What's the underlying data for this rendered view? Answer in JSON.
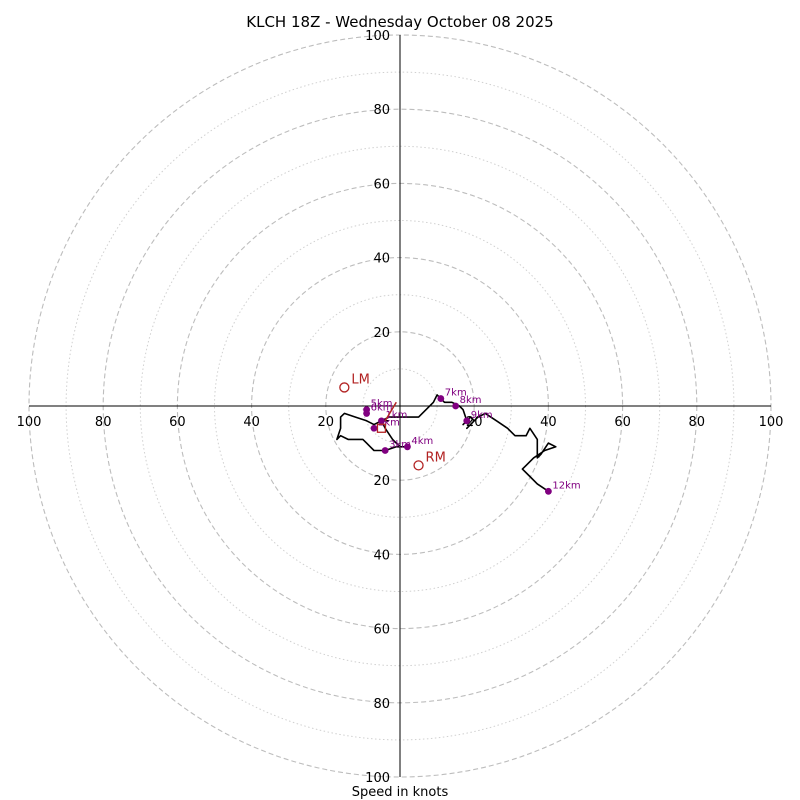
{
  "chart_data": {
    "type": "hodograph",
    "title": "KLCH 18Z - Wednesday October 08 2025",
    "xlabel": "Speed in knots",
    "axis_range": [
      -100,
      100
    ],
    "ring_major_values": [
      20,
      40,
      60,
      80,
      100
    ],
    "ring_minor_values": [
      10,
      30,
      50,
      70,
      90
    ],
    "tick_labels": {
      "x_left": [
        "100",
        "80",
        "60",
        "40",
        "20"
      ],
      "x_right": [
        "20",
        "40",
        "60",
        "80",
        "100"
      ],
      "y_top": [
        "100",
        "80",
        "60",
        "40",
        "20"
      ],
      "y_bottom": [
        "20",
        "40",
        "60",
        "80",
        "100"
      ]
    },
    "hodograph_trace": [
      [
        -3,
        -4
      ],
      [
        -5,
        -4
      ],
      [
        -4,
        -6
      ],
      [
        -2,
        -9
      ],
      [
        0,
        -11
      ],
      [
        2,
        -11
      ],
      [
        -1,
        -11
      ],
      [
        -4,
        -12
      ],
      [
        -7,
        -12
      ],
      [
        -8,
        -11
      ],
      [
        -9,
        -10
      ],
      [
        -10,
        -9
      ],
      [
        -12,
        -9
      ],
      [
        -14,
        -9
      ],
      [
        -16,
        -8
      ],
      [
        -17,
        -9
      ],
      [
        -16,
        -6
      ],
      [
        -16,
        -3
      ],
      [
        -15,
        -2
      ],
      [
        -12,
        -3
      ],
      [
        -9,
        -4
      ],
      [
        -7,
        -5
      ],
      [
        -5,
        -4
      ],
      [
        -3,
        -3
      ],
      [
        -1,
        -3
      ],
      [
        2,
        -3
      ],
      [
        5,
        -3
      ],
      [
        7,
        -1
      ],
      [
        9,
        1
      ],
      [
        10,
        3
      ],
      [
        12,
        1
      ],
      [
        14,
        1
      ],
      [
        16,
        0
      ],
      [
        17,
        -1
      ],
      [
        18,
        -4
      ],
      [
        17,
        -5
      ],
      [
        19,
        -3
      ],
      [
        20,
        -4
      ],
      [
        18,
        -6
      ],
      [
        21,
        -3
      ],
      [
        23,
        -2
      ],
      [
        26,
        -4
      ],
      [
        29,
        -6
      ],
      [
        31,
        -8
      ],
      [
        34,
        -8
      ],
      [
        35,
        -6
      ],
      [
        37,
        -9
      ],
      [
        37,
        -12
      ],
      [
        37,
        -14
      ],
      [
        38,
        -13
      ],
      [
        40,
        -10
      ],
      [
        42,
        -11
      ],
      [
        39,
        -12
      ],
      [
        36,
        -14
      ],
      [
        34,
        -16
      ],
      [
        33,
        -17
      ],
      [
        35,
        -19
      ],
      [
        37,
        -21
      ],
      [
        40,
        -23
      ]
    ],
    "height_markers": [
      {
        "label": "1km",
        "u": -5,
        "v": -4
      },
      {
        "label": "2km",
        "u": -7,
        "v": -6
      },
      {
        "label": "3km",
        "u": -4,
        "v": -12
      },
      {
        "label": "4km",
        "u": 2,
        "v": -11
      },
      {
        "label": "5km",
        "u": -9,
        "v": -1
      },
      {
        "label": "6km",
        "u": -9,
        "v": -2
      },
      {
        "label": "7km",
        "u": 11,
        "v": 2
      },
      {
        "label": "8km",
        "u": 15,
        "v": 0
      },
      {
        "label": "9km",
        "u": 18,
        "v": -4
      },
      {
        "label": "12km",
        "u": 40,
        "v": -23
      }
    ],
    "marker_suffix_labels": [
      "1km",
      "2km",
      "3km",
      "4km",
      "5km",
      "6km",
      "7km",
      "8km",
      "9km",
      "12km"
    ],
    "storm_motion": [
      {
        "label": "LM",
        "u": -15,
        "v": 5,
        "color": "#b22222"
      },
      {
        "label": "RM",
        "u": 5,
        "v": -16,
        "color": "#b22222"
      }
    ],
    "mean_wind": {
      "u": -5,
      "v": -6,
      "color": "#b22222"
    },
    "shear_vector": {
      "from": [
        -4,
        -4
      ],
      "to": [
        -1,
        1
      ],
      "color": "#b22222"
    }
  }
}
